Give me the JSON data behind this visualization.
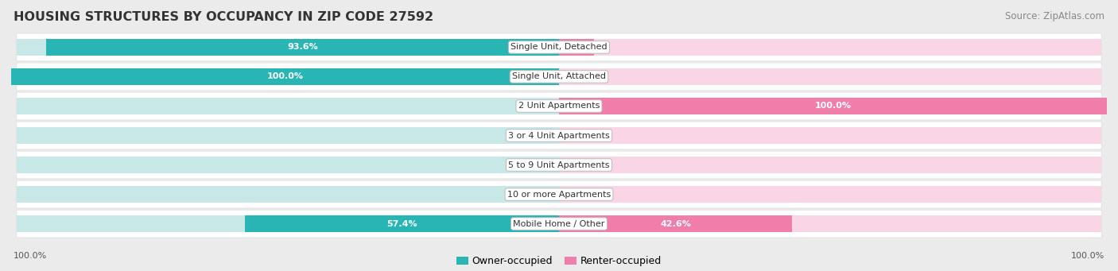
{
  "title": "HOUSING STRUCTURES BY OCCUPANCY IN ZIP CODE 27592",
  "source": "Source: ZipAtlas.com",
  "categories": [
    "Single Unit, Detached",
    "Single Unit, Attached",
    "2 Unit Apartments",
    "3 or 4 Unit Apartments",
    "5 to 9 Unit Apartments",
    "10 or more Apartments",
    "Mobile Home / Other"
  ],
  "owner_pct": [
    93.6,
    100.0,
    0.0,
    0.0,
    0.0,
    0.0,
    57.4
  ],
  "renter_pct": [
    6.4,
    0.0,
    100.0,
    0.0,
    0.0,
    0.0,
    42.6
  ],
  "owner_color": "#2ab5b5",
  "renter_color": "#f07daa",
  "bar_bg_owner": "#c8e8e8",
  "bar_bg_renter": "#f9d5e5",
  "row_bg_color": "#f4f4f4",
  "bg_color": "#ebebeb",
  "title_fontsize": 11.5,
  "source_fontsize": 8.5,
  "label_fontsize": 8,
  "legend_fontsize": 9,
  "axis_label_fontsize": 8,
  "bar_height": 0.58,
  "legend_owner": "Owner-occupied",
  "legend_renter": "Renter-occupied",
  "x_left_label": "100.0%",
  "x_right_label": "100.0%"
}
